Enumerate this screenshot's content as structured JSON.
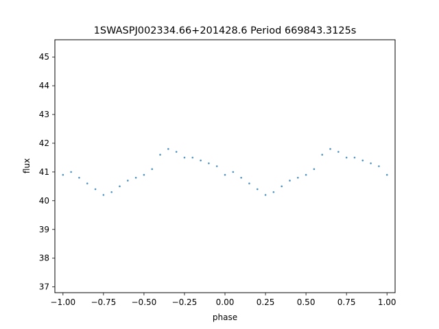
{
  "chart_data": {
    "type": "scatter",
    "title": "1SWASPJ002334.66+201428.6 Period 669843.3125s",
    "xlabel": "phase",
    "ylabel": "flux",
    "xlim": [
      -1.05,
      1.05
    ],
    "ylim": [
      36.8,
      45.6
    ],
    "xticks": [
      -1.0,
      -0.75,
      -0.5,
      -0.25,
      0.0,
      0.25,
      0.5,
      0.75,
      1.0
    ],
    "xtick_labels": [
      "−1.00",
      "−0.75",
      "−0.50",
      "−0.25",
      "0.00",
      "0.25",
      "0.50",
      "0.75",
      "1.00"
    ],
    "yticks": [
      37,
      38,
      39,
      40,
      41,
      42,
      43,
      44,
      45
    ],
    "ytick_labels": [
      "37",
      "38",
      "39",
      "40",
      "41",
      "42",
      "43",
      "44",
      "45"
    ],
    "grid": false,
    "marker_color": "#1f77b4",
    "series": [
      {
        "x": [
          -1.0,
          -0.95,
          -0.9,
          -0.85,
          -0.8,
          -0.75,
          -0.7,
          -0.65,
          -0.6,
          -0.55,
          -0.5,
          -0.45,
          -0.4,
          -0.35,
          -0.3,
          -0.25,
          -0.2,
          -0.15,
          -0.1,
          -0.05,
          0.0,
          0.05,
          0.1,
          0.15,
          0.2,
          0.25,
          0.3,
          0.35,
          0.4,
          0.45,
          0.5,
          0.55,
          0.6,
          0.65,
          0.7,
          0.75,
          0.8,
          0.85,
          0.9,
          0.95,
          1.0
        ],
        "y": [
          40.9,
          41.0,
          40.8,
          40.6,
          40.4,
          40.2,
          40.3,
          40.5,
          40.7,
          40.8,
          40.9,
          41.1,
          41.6,
          41.8,
          41.7,
          41.5,
          41.5,
          41.4,
          41.3,
          41.2,
          40.9,
          41.0,
          40.8,
          40.6,
          40.4,
          40.2,
          40.3,
          40.5,
          40.7,
          40.8,
          40.9,
          41.1,
          41.6,
          41.8,
          41.7,
          41.5,
          41.5,
          41.4,
          41.3,
          41.2,
          40.9
        ]
      }
    ]
  }
}
